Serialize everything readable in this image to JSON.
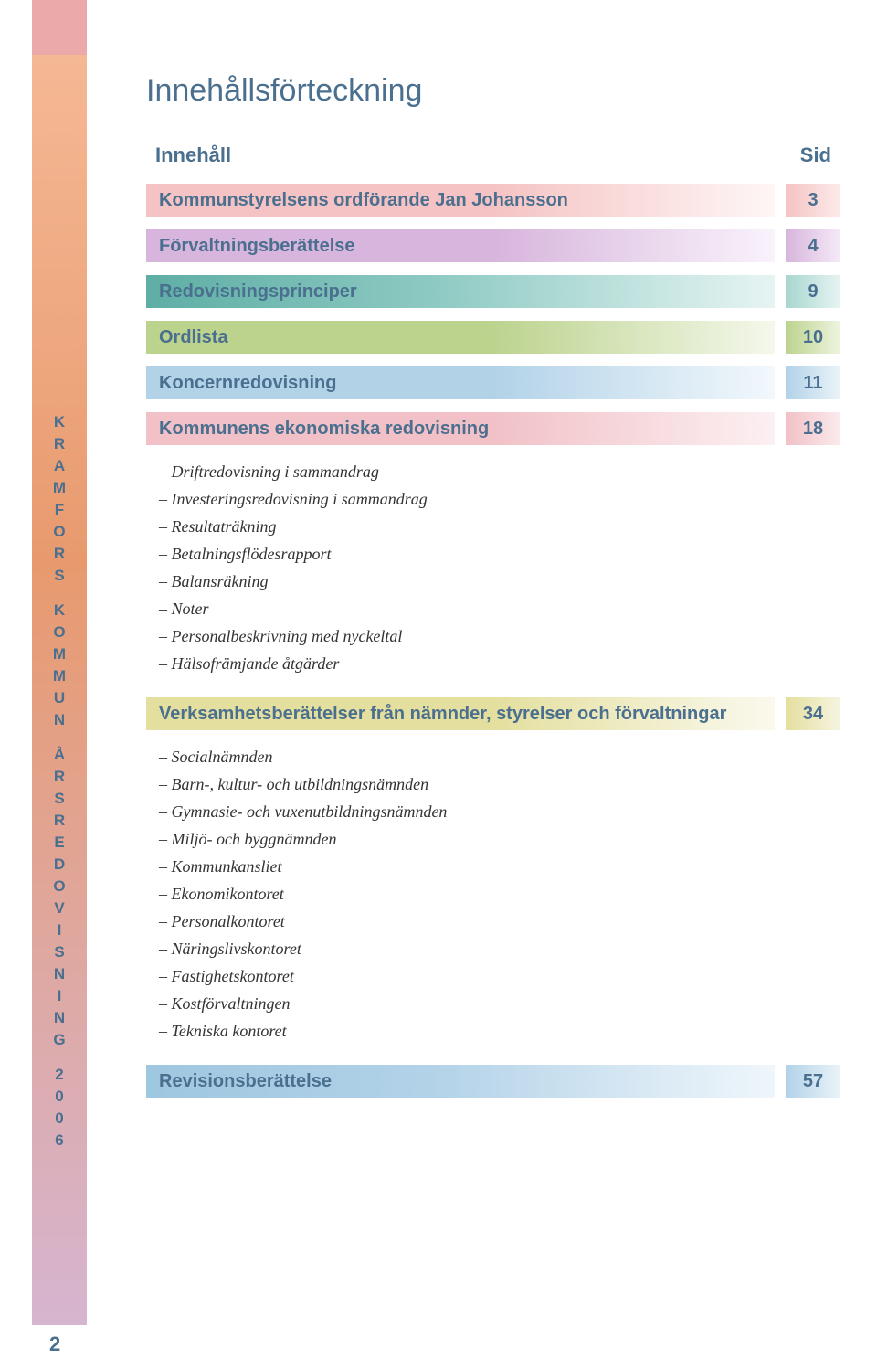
{
  "colors": {
    "primary_text": "#4a6f8f",
    "body_text": "#333333",
    "topleft_square": "#eba9a9",
    "side_gradient_top": "#f5b894",
    "side_gradient_mid": "#e89a6e",
    "side_gradient_bottom": "#d6b5d0",
    "background": "#ffffff"
  },
  "typography": {
    "heading_font": "Arial",
    "heading_size_pt": 26,
    "body_font": "Georgia",
    "toc_label_size_pt": 15,
    "sub_item_size_pt": 14
  },
  "sidebar": {
    "line1": "KRAMFORS",
    "line2": "KOMMUN",
    "line3": "ÅRSREDOVISNING",
    "line4": "2006"
  },
  "page_number": "2",
  "heading": "Innehållsförteckning",
  "toc_header": {
    "left": "Innehåll",
    "right": "Sid"
  },
  "toc": [
    {
      "label": "Kommunstyrelsens ordförande Jan Johansson",
      "page": "3",
      "bar": "pink"
    },
    {
      "label": "Förvaltningsberättelse",
      "page": "4",
      "bar": "purple"
    },
    {
      "label": "Redovisningsprinciper",
      "page": "9",
      "bar": "teal"
    },
    {
      "label": "Ordlista",
      "page": "10",
      "bar": "green"
    },
    {
      "label": "Koncernredovisning",
      "page": "11",
      "bar": "blue"
    },
    {
      "label": "Kommunens ekonomiska redovisning",
      "page": "18",
      "bar": "rose"
    }
  ],
  "sublist_a": [
    "– Driftredovisning i sammandrag",
    "– Investeringsredovisning i sammandrag",
    "– Resultaträkning",
    "– Betalningsflödesrapport",
    "– Balansräkning",
    "– Noter",
    "– Personalbeskrivning med nyckeltal",
    "– Hälsofrämjande åtgärder"
  ],
  "mid_row": {
    "label": "Verksamhetsberättelser från nämnder, styrelser och förvaltningar",
    "page": "34",
    "bar": "yellow"
  },
  "sublist_b": [
    "– Socialnämnden",
    "– Barn-, kultur- och utbildningsnämnden",
    "– Gymnasie- och vuxenutbildningsnämnden",
    "– Miljö- och byggnämnden",
    "– Kommunkansliet",
    "– Ekonomikontoret",
    "– Personalkontoret",
    "– Näringslivskontoret",
    "– Fastighetskontoret",
    "– Kostförvaltningen",
    "– Tekniska kontoret"
  ],
  "last_row": {
    "label": "Revisionsberättelse",
    "page": "57",
    "bar": "blue2"
  }
}
